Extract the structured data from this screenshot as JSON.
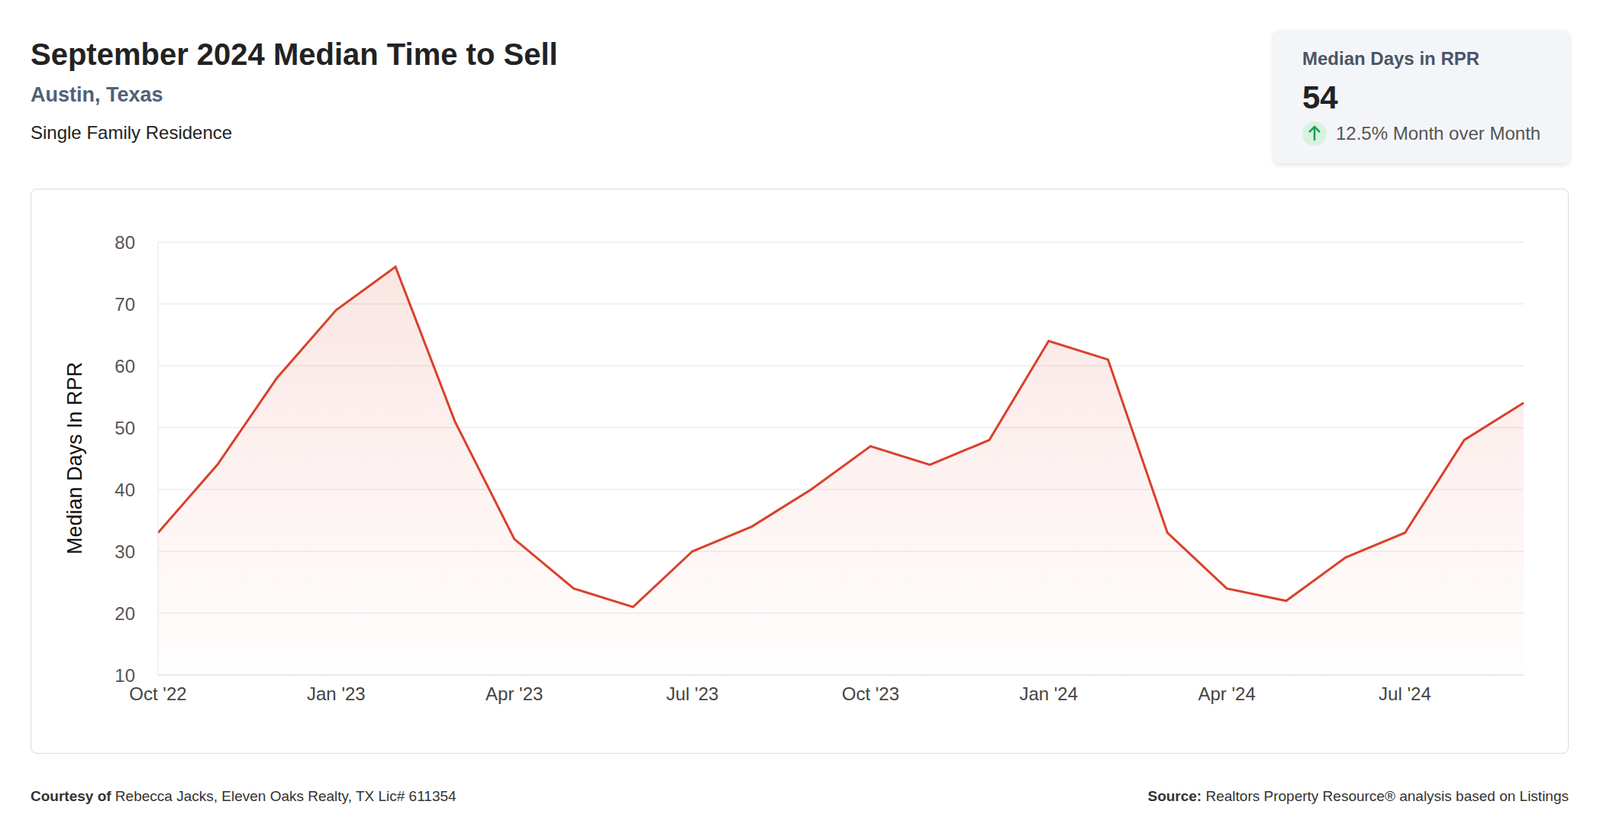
{
  "chart_data": {
    "type": "area",
    "title": "September 2024 Median Time to Sell",
    "subtitle": "Austin, Texas",
    "property_type": "Single Family Residence",
    "y_label": "Median Days In RPR",
    "categories": [
      "Oct '22",
      null,
      null,
      "Jan '23",
      null,
      null,
      "Apr '23",
      null,
      null,
      "Jul '23",
      null,
      null,
      "Oct '23",
      null,
      null,
      "Jan '24",
      null,
      null,
      "Apr '24",
      null,
      null,
      "Jul '24",
      null,
      null
    ],
    "values": [
      33,
      44,
      58,
      69,
      76,
      51,
      32,
      24,
      21,
      30,
      34,
      40,
      47,
      44,
      48,
      64,
      61,
      33,
      24,
      22,
      29,
      33,
      48,
      54
    ],
    "color": "#d9412b",
    "ylim": [
      10,
      80
    ],
    "yticks": [
      10,
      20,
      30,
      40,
      50,
      60,
      70,
      80
    ],
    "grid": true,
    "stat_card": {
      "label": "Median Days in RPR",
      "value": 54,
      "change": "12.5% Month over Month"
    },
    "footer": {
      "credit_label": "Courtesy of",
      "credit": "Rebecca Jacks, Eleven Oaks Realty, TX Lic# 611354",
      "source_label": "Source:",
      "source": "Realtors Property Resource® analysis based on Listings"
    }
  }
}
